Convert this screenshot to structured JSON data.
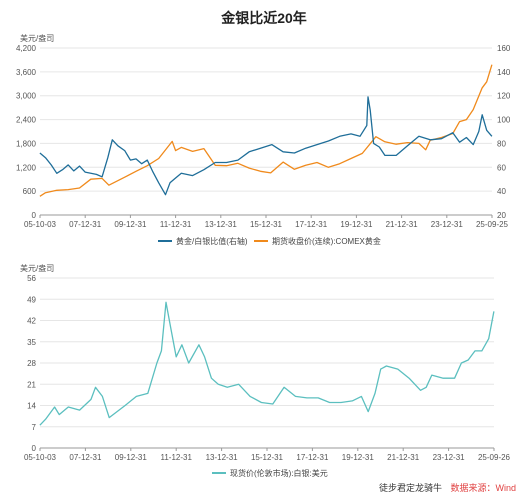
{
  "title": "金银比近20年",
  "footer": {
    "author": "徒步君定龙骑牛",
    "source": "数据来源：Wind"
  },
  "colors": {
    "ratio": "#1f6e99",
    "gold": "#f08a1c",
    "silver": "#5bbfbf",
    "grid": "#e6e6e6"
  },
  "chart_data": [
    {
      "type": "line",
      "title": "金银比近20年",
      "y_unit": "美元/盎司",
      "x_ticks": [
        "05-10-03",
        "07-12-31",
        "09-12-31",
        "11-12-31",
        "13-12-31",
        "15-12-31",
        "17-12-31",
        "19-12-31",
        "21-12-31",
        "23-12-31",
        "25-09-25"
      ],
      "yleft_ticks": [
        "0",
        "600",
        "1,200",
        "1,800",
        "2,400",
        "3,000",
        "3,600",
        "4,200"
      ],
      "yright_ticks": [
        "20",
        "40",
        "60",
        "80",
        "100",
        "120",
        "140",
        "160"
      ],
      "ylim_left": [
        0,
        4200
      ],
      "ylim_right": [
        20,
        160
      ],
      "legend": [
        "黄金/白银比值(右轴)",
        "期货收盘价(连续):COMEX黄金"
      ],
      "series": [
        {
          "name": "黄金/白银比值(右轴)",
          "axis": "right",
          "x": [
            2005.75,
            2006.0,
            2006.25,
            2006.5,
            2006.75,
            2007.0,
            2007.25,
            2007.5,
            2007.75,
            2008.0,
            2008.25,
            2008.5,
            2008.75,
            2008.95,
            2009.2,
            2009.5,
            2009.75,
            2010.0,
            2010.25,
            2010.5,
            2010.75,
            2011.0,
            2011.3,
            2011.5,
            2011.75,
            2012.0,
            2012.5,
            2013.0,
            2013.5,
            2014.0,
            2014.5,
            2015.0,
            2015.5,
            2016.0,
            2016.5,
            2017.0,
            2017.5,
            2018.0,
            2018.5,
            2019.0,
            2019.5,
            2019.9,
            2020.2,
            2020.25,
            2020.35,
            2020.5,
            2020.75,
            2021.0,
            2021.5,
            2022.0,
            2022.5,
            2023.0,
            2023.5,
            2024.0,
            2024.3,
            2024.6,
            2024.9,
            2025.15,
            2025.3,
            2025.5,
            2025.73
          ],
          "y": [
            72,
            68,
            62,
            55,
            58,
            62,
            57,
            61,
            56,
            55,
            54,
            52,
            68,
            83,
            78,
            74,
            66,
            67,
            63,
            66,
            56,
            47,
            37,
            47,
            51,
            55,
            53,
            58,
            64,
            64,
            66,
            73,
            76,
            79,
            73,
            72,
            76,
            79,
            82,
            86,
            88,
            86,
            95,
            119,
            108,
            80,
            77,
            70,
            70,
            78,
            86,
            83,
            84,
            89,
            81,
            85,
            79,
            90,
            104,
            91,
            86
          ]
        },
        {
          "name": "期货收盘价(连续):COMEX黄金",
          "axis": "left",
          "x": [
            2005.75,
            2006.0,
            2006.5,
            2007.0,
            2007.5,
            2008.0,
            2008.5,
            2008.8,
            2009.5,
            2010.0,
            2010.5,
            2011.0,
            2011.6,
            2011.75,
            2012.0,
            2012.5,
            2013.0,
            2013.5,
            2014.0,
            2014.5,
            2015.0,
            2015.5,
            2015.95,
            2016.5,
            2017.0,
            2017.5,
            2018.0,
            2018.5,
            2019.0,
            2019.5,
            2020.0,
            2020.6,
            2021.0,
            2021.5,
            2022.0,
            2022.5,
            2022.8,
            2023.0,
            2023.5,
            2024.0,
            2024.3,
            2024.6,
            2024.9,
            2025.3,
            2025.5,
            2025.73
          ],
          "y": [
            470,
            560,
            620,
            640,
            680,
            900,
            920,
            750,
            950,
            1100,
            1240,
            1420,
            1850,
            1620,
            1700,
            1600,
            1670,
            1250,
            1240,
            1300,
            1180,
            1100,
            1060,
            1330,
            1150,
            1250,
            1320,
            1200,
            1290,
            1420,
            1550,
            1970,
            1840,
            1780,
            1820,
            1800,
            1640,
            1880,
            1950,
            2050,
            2350,
            2400,
            2650,
            3200,
            3350,
            3780
          ]
        }
      ]
    },
    {
      "type": "line",
      "y_unit": "美元/盎司",
      "x_ticks": [
        "05-10-03",
        "07-12-31",
        "09-12-31",
        "11-12-31",
        "13-12-31",
        "15-12-31",
        "17-12-31",
        "19-12-31",
        "21-12-31",
        "23-12-31",
        "25-09-26"
      ],
      "y_ticks": [
        "0",
        "7",
        "14",
        "21",
        "28",
        "35",
        "42",
        "49",
        "56"
      ],
      "ylim": [
        0,
        56
      ],
      "legend": [
        "现货价(伦敦市场):白银:美元"
      ],
      "series": [
        {
          "name": "现货价(伦敦市场):白银:美元",
          "x": [
            2005.75,
            2006.0,
            2006.4,
            2006.6,
            2007.0,
            2007.5,
            2008.0,
            2008.2,
            2008.5,
            2008.8,
            2009.5,
            2010.0,
            2010.5,
            2010.9,
            2011.1,
            2011.3,
            2011.5,
            2011.75,
            2012.0,
            2012.3,
            2012.75,
            2013.0,
            2013.3,
            2013.6,
            2014.0,
            2014.5,
            2015.0,
            2015.5,
            2016.0,
            2016.5,
            2017.0,
            2017.5,
            2018.0,
            2018.5,
            2019.0,
            2019.5,
            2019.9,
            2020.2,
            2020.5,
            2020.75,
            2021.0,
            2021.5,
            2022.0,
            2022.5,
            2022.75,
            2023.0,
            2023.5,
            2024.0,
            2024.3,
            2024.6,
            2024.9,
            2025.2,
            2025.5,
            2025.73
          ],
          "y": [
            7.5,
            9.5,
            13.5,
            11,
            13.5,
            12.5,
            16,
            20,
            17,
            10,
            14,
            17,
            18,
            28,
            32,
            48,
            40,
            30,
            34,
            28,
            34,
            30,
            23,
            21,
            20,
            21,
            17,
            15,
            14.5,
            20,
            17,
            16.5,
            16.5,
            15,
            15,
            15.5,
            17,
            12,
            18,
            26,
            27,
            26,
            23,
            19,
            20,
            24,
            23,
            23,
            28,
            29,
            32,
            32,
            36,
            45
          ]
        }
      ]
    }
  ]
}
